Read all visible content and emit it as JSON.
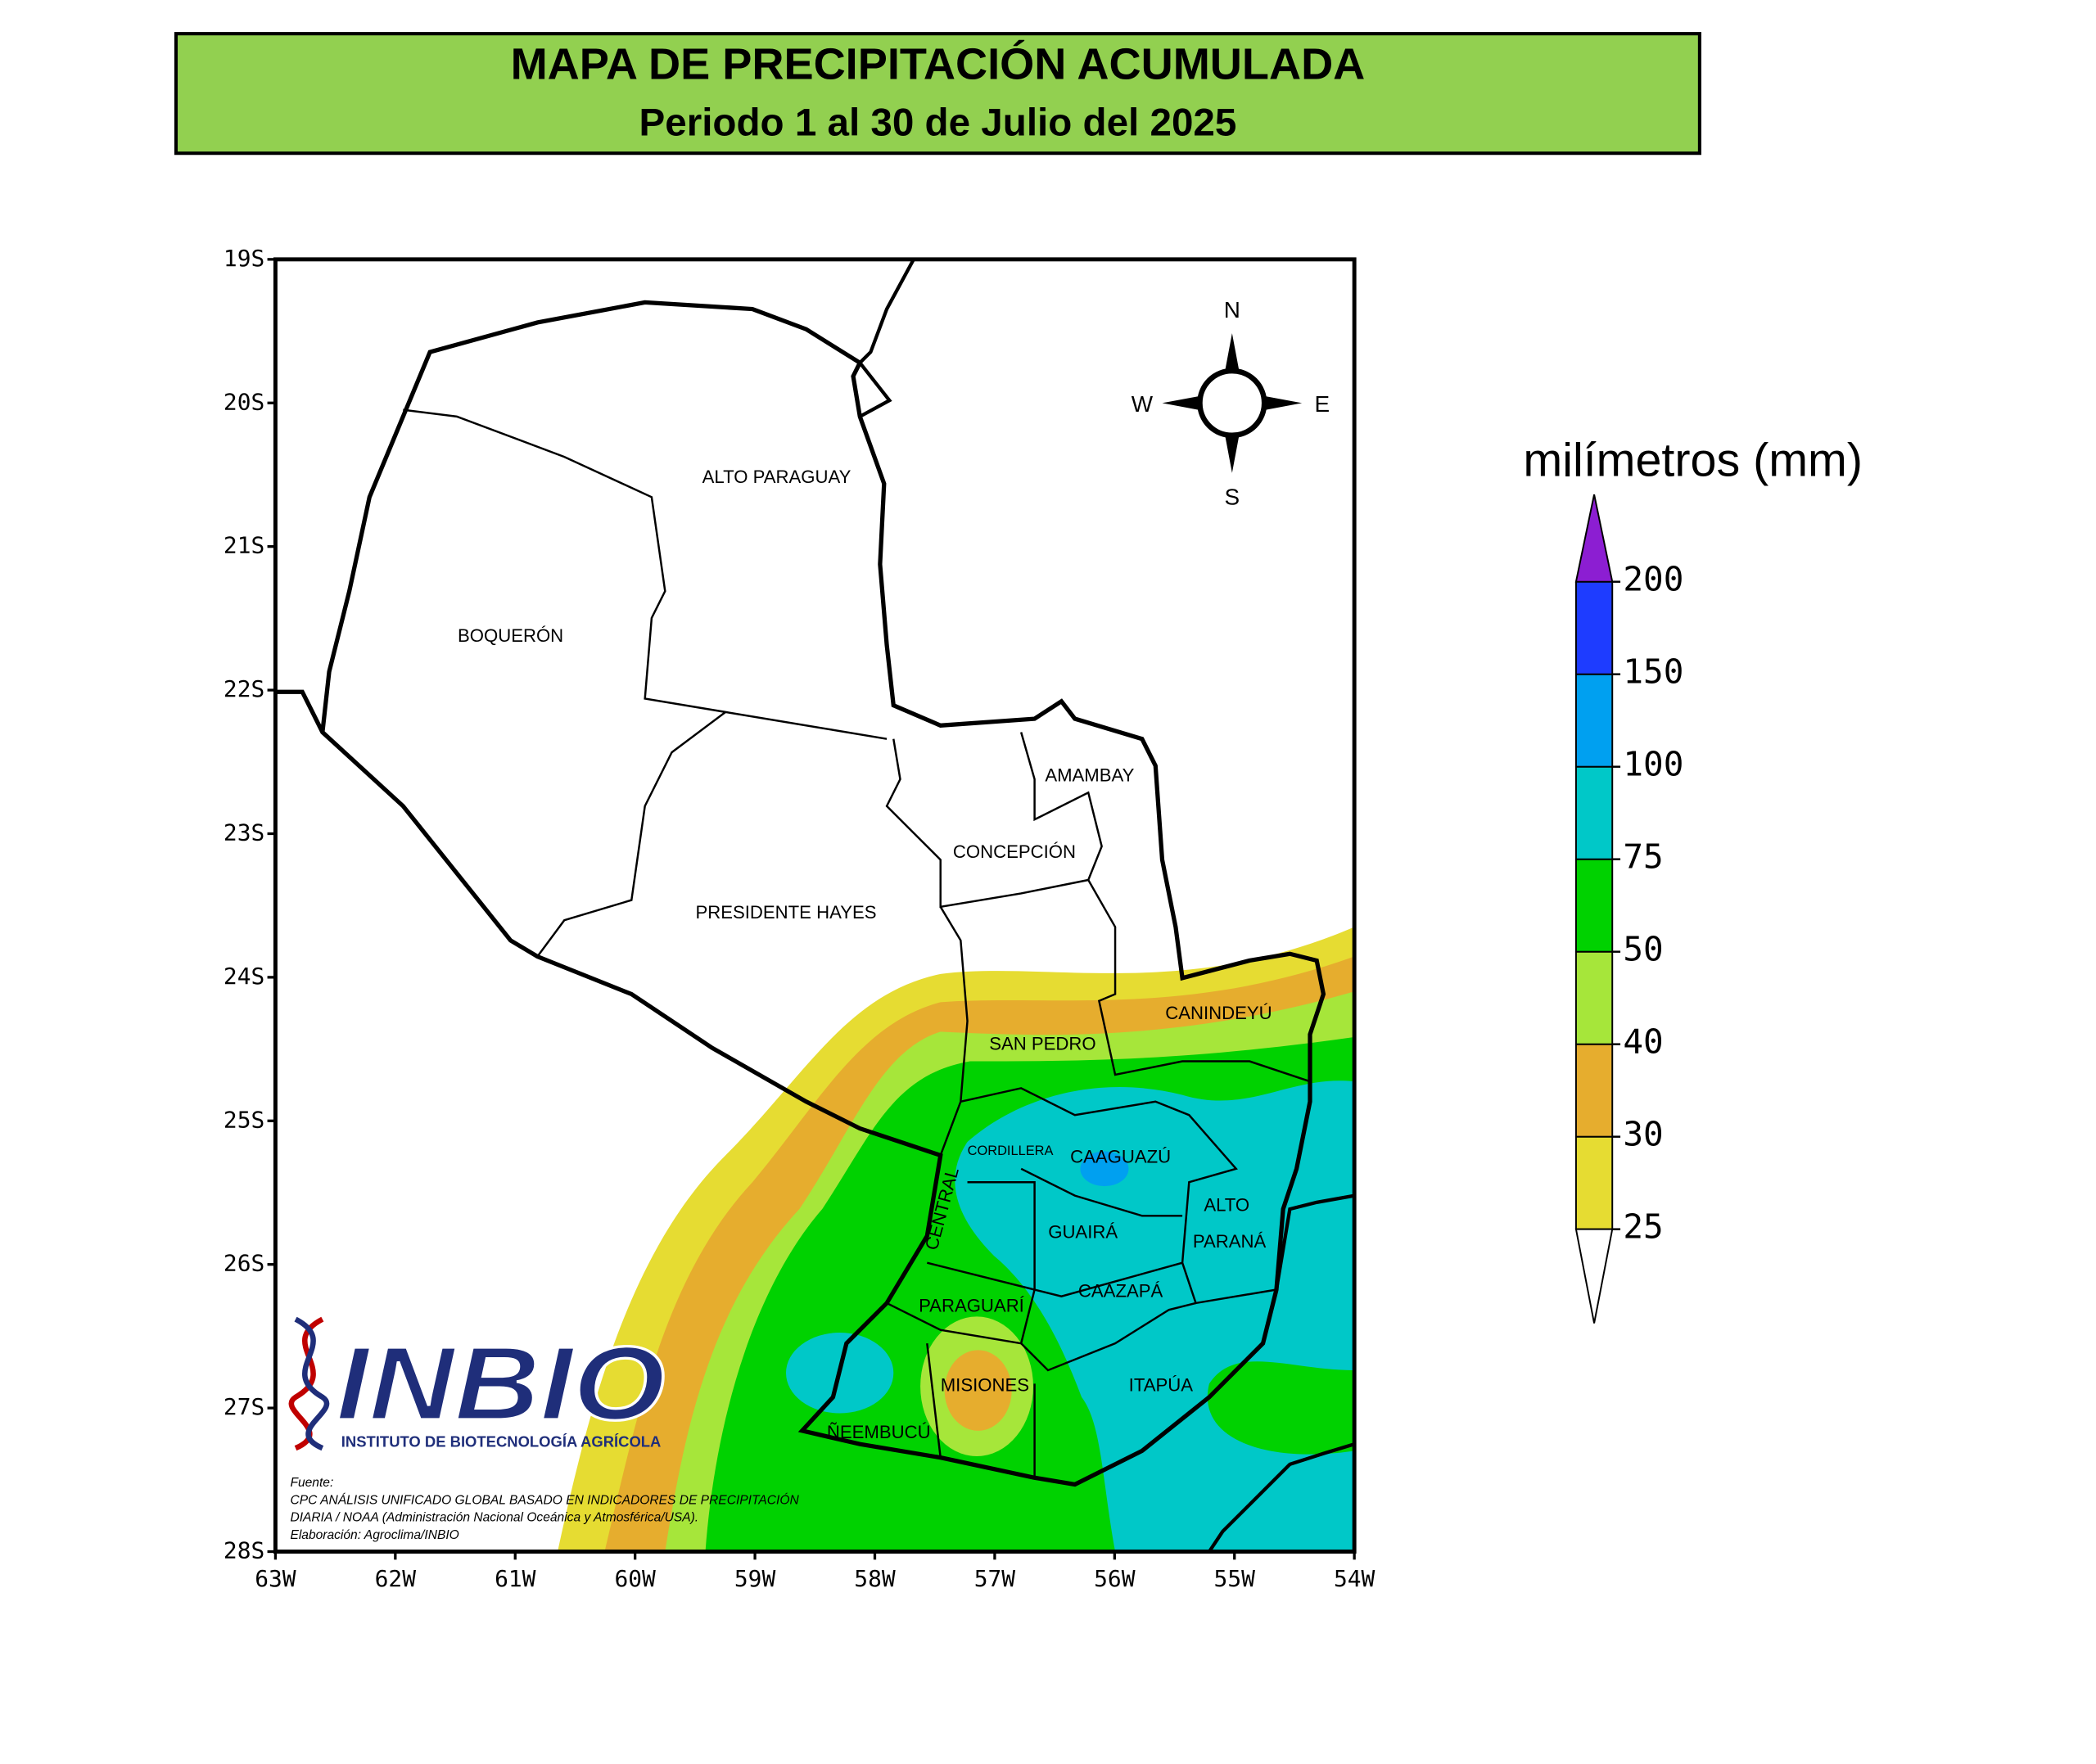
{
  "header": {
    "title": "MAPA DE PRECIPITACIÓN ACUMULADA",
    "subtitle": "Periodo 1 al 30 de Julio del 2025"
  },
  "map": {
    "lat_labels": [
      "19S",
      "20S",
      "21S",
      "22S",
      "23S",
      "24S",
      "25S",
      "26S",
      "27S",
      "28S"
    ],
    "lon_labels": [
      "63W",
      "62W",
      "61W",
      "60W",
      "59W",
      "58W",
      "57W",
      "56W",
      "55W",
      "54W"
    ],
    "regions": [
      "ALTO PARAGUAY",
      "BOQUERÓN",
      "AMAMBAY",
      "CONCEPCIÓN",
      "PRESIDENTE HAYES",
      "CANINDEYÚ",
      "SAN PEDRO",
      "CORDILLERA",
      "CAAGUAZÚ",
      "ALTO",
      "PARANÁ",
      "GUAIRÁ",
      "CENTRAL",
      "CAAZAPÁ",
      "PARAGUARÍ",
      "MISIONES",
      "ITAPÚA",
      "ÑEEMBUCÚ"
    ],
    "compass": {
      "north": "N",
      "east": "E",
      "south": "S",
      "west": "W"
    }
  },
  "legend": {
    "title": "milímetros (mm)",
    "ticks": [
      25,
      30,
      40,
      50,
      75,
      100,
      150,
      200
    ],
    "colors": [
      "#e6dc32",
      "#e6ad2e",
      "#a6e63a",
      "#00d200",
      "#00c8c8",
      "#00a0f0",
      "#1e3cff",
      "#8c1ed2"
    ]
  },
  "logo": {
    "name": "INBIO",
    "subtitle": "INSTITUTO DE BIOTECNOLOGÍA AGRÍCOLA"
  },
  "source": {
    "lines": [
      "Fuente:",
      "CPC ANÁLISIS UNIFICADO GLOBAL BASADO EN INDICADORES DE PRECIPITACIÓN",
      "DIARIA / NOAA (Administración Nacional Oceánica y Atmosférica/USA).",
      "Elaboración: Agroclima/INBIO"
    ]
  }
}
